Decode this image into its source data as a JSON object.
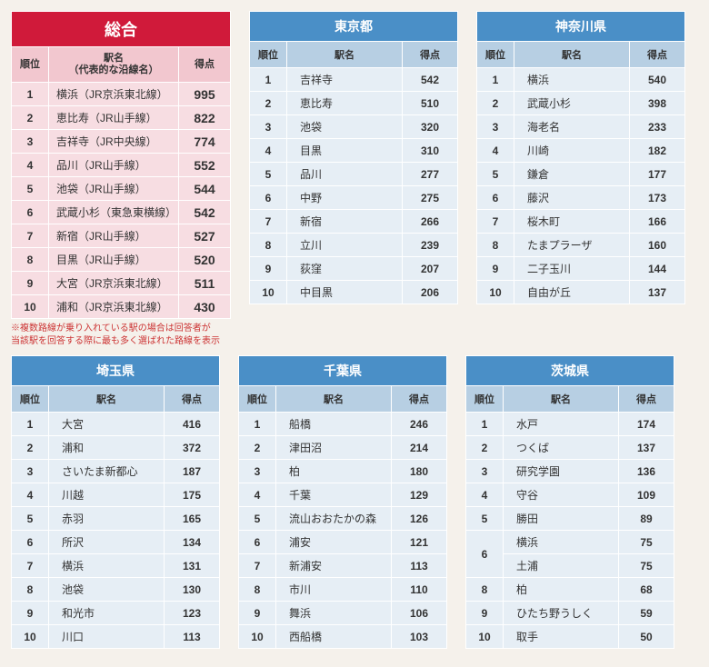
{
  "sogo": {
    "title": "総合",
    "headers": {
      "rank": "順位",
      "station": "駅名\n（代表的な沿線名）",
      "score": "得点"
    },
    "rows": [
      {
        "rank": "1",
        "station": "横浜（JR京浜東北線）",
        "score": "995"
      },
      {
        "rank": "2",
        "station": "恵比寿（JR山手線）",
        "score": "822"
      },
      {
        "rank": "3",
        "station": "吉祥寺（JR中央線）",
        "score": "774"
      },
      {
        "rank": "4",
        "station": "品川（JR山手線）",
        "score": "552"
      },
      {
        "rank": "5",
        "station": "池袋（JR山手線）",
        "score": "544"
      },
      {
        "rank": "6",
        "station": "武蔵小杉（東急東横線）",
        "score": "542"
      },
      {
        "rank": "7",
        "station": "新宿（JR山手線）",
        "score": "527"
      },
      {
        "rank": "8",
        "station": "目黒（JR山手線）",
        "score": "520"
      },
      {
        "rank": "9",
        "station": "大宮（JR京浜東北線）",
        "score": "511"
      },
      {
        "rank": "10",
        "station": "浦和（JR京浜東北線）",
        "score": "430"
      }
    ],
    "note1": "※複数路線が乗り入れている駅の場合は回答者が",
    "note2": "当該駅を回答する際に最も多く選ばれた路線を表示"
  },
  "common_headers": {
    "rank": "順位",
    "station": "駅名",
    "score": "得点"
  },
  "tokyo": {
    "title": "東京都",
    "rows": [
      {
        "rank": "1",
        "station": "吉祥寺",
        "score": "542"
      },
      {
        "rank": "2",
        "station": "恵比寿",
        "score": "510"
      },
      {
        "rank": "3",
        "station": "池袋",
        "score": "320"
      },
      {
        "rank": "4",
        "station": "目黒",
        "score": "310"
      },
      {
        "rank": "5",
        "station": "品川",
        "score": "277"
      },
      {
        "rank": "6",
        "station": "中野",
        "score": "275"
      },
      {
        "rank": "7",
        "station": "新宿",
        "score": "266"
      },
      {
        "rank": "8",
        "station": "立川",
        "score": "239"
      },
      {
        "rank": "9",
        "station": "荻窪",
        "score": "207"
      },
      {
        "rank": "10",
        "station": "中目黒",
        "score": "206"
      }
    ]
  },
  "kanagawa": {
    "title": "神奈川県",
    "rows": [
      {
        "rank": "1",
        "station": "横浜",
        "score": "540"
      },
      {
        "rank": "2",
        "station": "武蔵小杉",
        "score": "398"
      },
      {
        "rank": "3",
        "station": "海老名",
        "score": "233"
      },
      {
        "rank": "4",
        "station": "川崎",
        "score": "182"
      },
      {
        "rank": "5",
        "station": "鎌倉",
        "score": "177"
      },
      {
        "rank": "6",
        "station": "藤沢",
        "score": "173"
      },
      {
        "rank": "7",
        "station": "桜木町",
        "score": "166"
      },
      {
        "rank": "8",
        "station": "たまプラーザ",
        "score": "160"
      },
      {
        "rank": "9",
        "station": "二子玉川",
        "score": "144"
      },
      {
        "rank": "10",
        "station": "自由が丘",
        "score": "137"
      }
    ]
  },
  "saitama": {
    "title": "埼玉県",
    "rows": [
      {
        "rank": "1",
        "station": "大宮",
        "score": "416"
      },
      {
        "rank": "2",
        "station": "浦和",
        "score": "372"
      },
      {
        "rank": "3",
        "station": "さいたま新都心",
        "score": "187"
      },
      {
        "rank": "4",
        "station": "川越",
        "score": "175"
      },
      {
        "rank": "5",
        "station": "赤羽",
        "score": "165"
      },
      {
        "rank": "6",
        "station": "所沢",
        "score": "134"
      },
      {
        "rank": "7",
        "station": "横浜",
        "score": "131"
      },
      {
        "rank": "8",
        "station": "池袋",
        "score": "130"
      },
      {
        "rank": "9",
        "station": "和光市",
        "score": "123"
      },
      {
        "rank": "10",
        "station": "川口",
        "score": "113"
      }
    ]
  },
  "chiba": {
    "title": "千葉県",
    "rows": [
      {
        "rank": "1",
        "station": "船橋",
        "score": "246"
      },
      {
        "rank": "2",
        "station": "津田沼",
        "score": "214"
      },
      {
        "rank": "3",
        "station": "柏",
        "score": "180"
      },
      {
        "rank": "4",
        "station": "千葉",
        "score": "129"
      },
      {
        "rank": "5",
        "station": "流山おおたかの森",
        "score": "126"
      },
      {
        "rank": "6",
        "station": "浦安",
        "score": "121"
      },
      {
        "rank": "7",
        "station": "新浦安",
        "score": "113"
      },
      {
        "rank": "8",
        "station": "市川",
        "score": "110"
      },
      {
        "rank": "9",
        "station": "舞浜",
        "score": "106"
      },
      {
        "rank": "10",
        "station": "西船橋",
        "score": "103"
      }
    ]
  },
  "ibaraki": {
    "title": "茨城県",
    "rows": [
      {
        "rank": "1",
        "station": "水戸",
        "score": "174",
        "rowspan": 1
      },
      {
        "rank": "2",
        "station": "つくば",
        "score": "137",
        "rowspan": 1
      },
      {
        "rank": "3",
        "station": "研究学園",
        "score": "136",
        "rowspan": 1
      },
      {
        "rank": "4",
        "station": "守谷",
        "score": "109",
        "rowspan": 1
      },
      {
        "rank": "5",
        "station": "勝田",
        "score": "89",
        "rowspan": 1
      },
      {
        "rank": "6",
        "station": "横浜",
        "score": "75",
        "rowspan": 2
      },
      {
        "rank": "",
        "station": "土浦",
        "score": "75",
        "rowspan": 0
      },
      {
        "rank": "8",
        "station": "柏",
        "score": "68",
        "rowspan": 1
      },
      {
        "rank": "9",
        "station": "ひたち野うしく",
        "score": "59",
        "rowspan": 1
      },
      {
        "rank": "10",
        "station": "取手",
        "score": "50",
        "rowspan": 1
      }
    ]
  }
}
